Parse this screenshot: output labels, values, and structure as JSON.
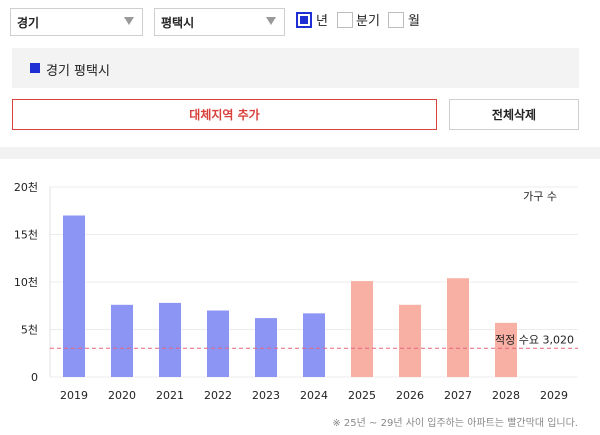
{
  "filters": {
    "region": "경기",
    "city": "평택시",
    "periods": [
      {
        "label": "년",
        "checked": true
      },
      {
        "label": "분기",
        "checked": false
      },
      {
        "label": "월",
        "checked": false
      }
    ]
  },
  "legend": {
    "label": "경기 평택시",
    "color": "#1f2fd4"
  },
  "buttons": {
    "add_region": "대체지역 추가",
    "clear_all": "전체삭제"
  },
  "chart_data": {
    "type": "bar",
    "unit_label": "가구 수",
    "categories": [
      "2019",
      "2020",
      "2021",
      "2022",
      "2023",
      "2024",
      "2025",
      "2026",
      "2027",
      "2028",
      "2029"
    ],
    "values": [
      17000,
      7600,
      7800,
      7000,
      6200,
      6700,
      10100,
      7600,
      10400,
      5700,
      0
    ],
    "forecast_from": "2025",
    "yticks": [
      {
        "value": 0,
        "label": "0"
      },
      {
        "value": 5000,
        "label": "5천"
      },
      {
        "value": 10000,
        "label": "10천"
      },
      {
        "value": 15000,
        "label": "15천"
      },
      {
        "value": 20000,
        "label": "20천"
      }
    ],
    "ylim": [
      0,
      20000
    ],
    "reference": {
      "value": 3020,
      "label": "적정 수요 3,020"
    },
    "colors": {
      "actual": "#8c95f4",
      "forecast": "#f9b0a4",
      "reference": "#e8647a"
    }
  },
  "footnote": "※ 25년 ~ 29년 사이 입주하는 아파트는 빨간막대 입니다."
}
